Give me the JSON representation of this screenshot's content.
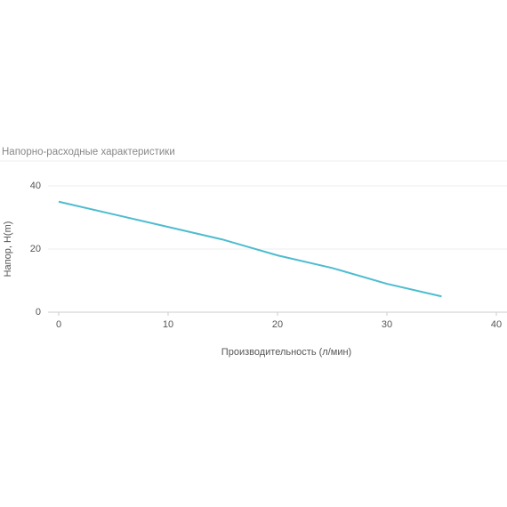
{
  "chart_data": {
    "type": "line",
    "title": "Напорно-расходные характеристики",
    "x_label": "Производительность (л/мин)",
    "y_label": "Напор, H(m)",
    "x": [
      0,
      5,
      10,
      15,
      20,
      25,
      30,
      35
    ],
    "series": [
      {
        "name": "H",
        "color": "#4dbcd0",
        "values": [
          35,
          31,
          27,
          23,
          18,
          14,
          9,
          5
        ]
      }
    ],
    "xlim": [
      0,
      40
    ],
    "xticks": [
      0,
      10,
      20,
      30,
      40
    ],
    "ylim": [
      0,
      40
    ],
    "yticks": [
      0,
      20,
      40
    ],
    "grid": true
  }
}
